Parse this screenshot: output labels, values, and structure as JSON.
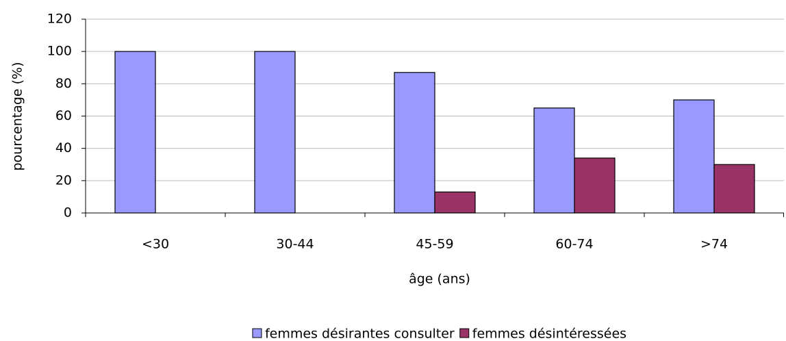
{
  "chart_data": {
    "type": "bar",
    "xlabel": "âge (ans)",
    "ylabel": "pourcentage (%)",
    "categories": [
      "<30",
      "30-44",
      "45-59",
      "60-74",
      ">74"
    ],
    "series": [
      {
        "name": "femmes désirantes consulter",
        "color": "#9999ff",
        "values": [
          100,
          100,
          87,
          65,
          70
        ]
      },
      {
        "name": "femmes désintéressées",
        "color": "#993366",
        "values": [
          0,
          0,
          13,
          34,
          30
        ]
      }
    ],
    "ylim": [
      0,
      120
    ],
    "yticks": [
      0,
      20,
      40,
      60,
      80,
      100,
      120
    ],
    "grid": true,
    "legend": "bottom"
  }
}
